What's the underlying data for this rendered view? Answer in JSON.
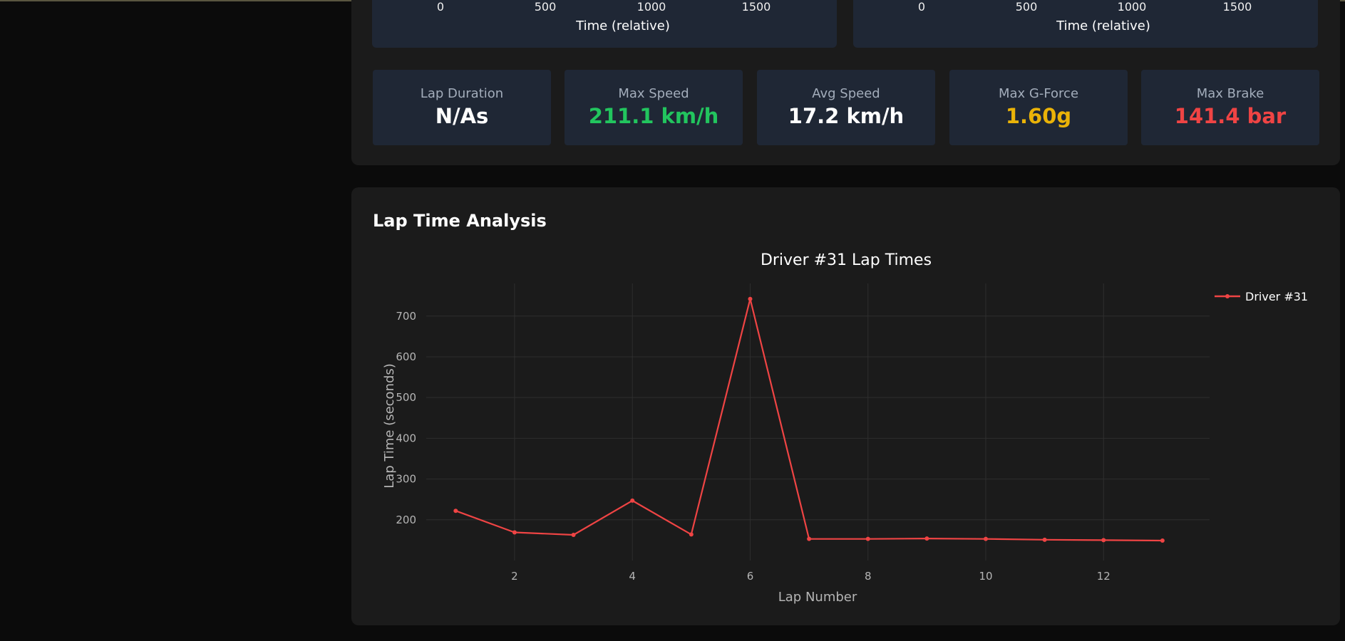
{
  "top_charts": [
    {
      "ticks": [
        "0",
        "500",
        "1000",
        "1500"
      ],
      "xlabel": "Time (relative)"
    },
    {
      "ticks": [
        "0",
        "500",
        "1000",
        "1500"
      ],
      "xlabel": "Time (relative)"
    }
  ],
  "stats": [
    {
      "label": "Lap Duration",
      "value": "N/As",
      "color": "#ffffff"
    },
    {
      "label": "Max Speed",
      "value": "211.1 km/h",
      "color": "#22c55e"
    },
    {
      "label": "Avg Speed",
      "value": "17.2 km/h",
      "color": "#ffffff"
    },
    {
      "label": "Max G-Force",
      "value": "1.60g",
      "color": "#eab308"
    },
    {
      "label": "Max Brake",
      "value": "141.4 bar",
      "color": "#ef4444"
    }
  ],
  "lap_section": {
    "heading": "Lap Time Analysis"
  },
  "chart_data": {
    "type": "line",
    "title": "Driver #31 Lap Times",
    "xlabel": "Lap Number",
    "ylabel": "Lap Time (seconds)",
    "x": [
      1,
      2,
      3,
      4,
      5,
      6,
      7,
      8,
      9,
      10,
      11,
      12,
      13
    ],
    "series": [
      {
        "name": "Driver #31",
        "color": "#ef4444",
        "values": [
          222,
          169,
          163,
          247,
          164,
          742,
          153,
          153,
          154,
          153,
          151,
          150,
          149
        ]
      }
    ],
    "xticks": [
      2,
      4,
      6,
      8,
      10,
      12
    ],
    "yticks": [
      200,
      300,
      400,
      500,
      600,
      700
    ],
    "xlim": [
      0.5,
      13.8
    ],
    "ylim": [
      100,
      780
    ],
    "grid": true,
    "legend_position": "top-right"
  }
}
